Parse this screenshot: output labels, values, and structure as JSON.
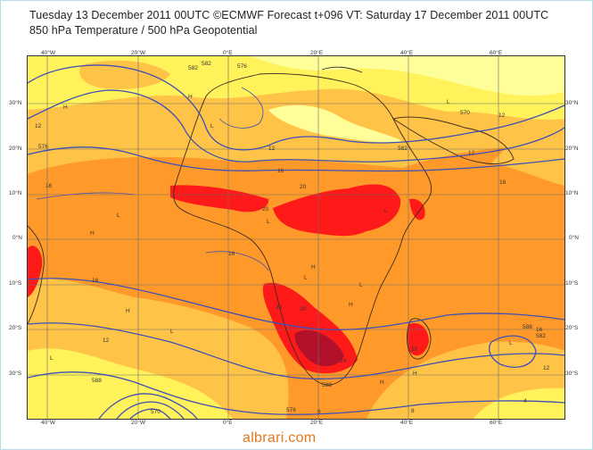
{
  "header": {
    "title_line1": "Tuesday 13 December 2011 00UTC ©ECMWF Forecast t+096 VT: Saturday 17 December 2011 00UTC",
    "title_line2": "850 hPa Temperature / 500 hPa Geopotential"
  },
  "axes": {
    "lon_top": [
      "40°W",
      "20°W",
      "0°E",
      "20°E",
      "40°E",
      "60°E"
    ],
    "lon_bottom": [
      "40°W",
      "20°W",
      "0°E",
      "20°E",
      "40°E",
      "60°E"
    ],
    "lat_left": [
      "30°N",
      "20°N",
      "10°N",
      "0°N",
      "10°S",
      "20°S",
      "30°S"
    ],
    "lat_right": [
      "30°N",
      "20°N",
      "10°N",
      "0°N",
      "10°S",
      "20°S",
      "30°S"
    ]
  },
  "contour_labels": [
    "582",
    "576",
    "570",
    "576",
    "582",
    "588",
    "588",
    "582",
    "576",
    "570",
    "582",
    "588",
    "12",
    "12",
    "16",
    "16",
    "20",
    "20",
    "16",
    "20",
    "20",
    "20",
    "24",
    "12",
    "16",
    "12",
    "12",
    "4",
    "8",
    "16",
    "12",
    "16",
    "8"
  ],
  "pressure_marks": [
    "H",
    "H",
    "H",
    "H",
    "H",
    "H",
    "H",
    "H",
    "L",
    "L",
    "L",
    "L",
    "L",
    "L",
    "L",
    "L",
    "L",
    "L"
  ],
  "watermark": "albrari.com",
  "colors": {
    "pale_yellow": "#ffff9a",
    "yellow": "#fff25a",
    "light_orange": "#ffc447",
    "orange": "#ff9a2a",
    "red": "#ff1a1a",
    "dark_red": "#b1112a",
    "contour": "#3e4fb5",
    "watermark": "#e0781c"
  }
}
